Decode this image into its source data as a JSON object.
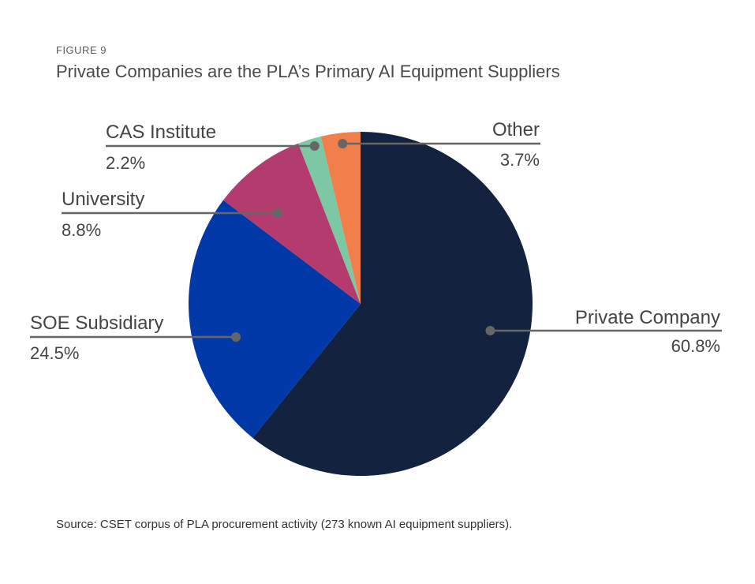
{
  "figure_label": "FIGURE 9",
  "title": "Private Companies are the PLA’s Primary AI Equipment Suppliers",
  "source": "Source: CSET corpus of PLA procurement activity (273 known AI equipment suppliers).",
  "chart_data": {
    "type": "pie",
    "title": "Private Companies are the PLA’s Primary AI Equipment Suppliers",
    "slices": [
      {
        "label": "Private Company",
        "value": 60.8,
        "value_label": "60.8%",
        "color": "#12223f"
      },
      {
        "label": "SOE Subsidiary",
        "value": 24.5,
        "value_label": "24.5%",
        "color": "#013aa8"
      },
      {
        "label": "University",
        "value": 8.8,
        "value_label": "8.8%",
        "color": "#b43b6d"
      },
      {
        "label": "CAS Institute",
        "value": 2.2,
        "value_label": "2.2%",
        "color": "#7cc8a5"
      },
      {
        "label": "Other",
        "value": 3.7,
        "value_label": "3.7%",
        "color": "#f07f4c"
      }
    ],
    "start": "12 o'clock",
    "direction": "clockwise",
    "leader_line_color": "#666666"
  }
}
